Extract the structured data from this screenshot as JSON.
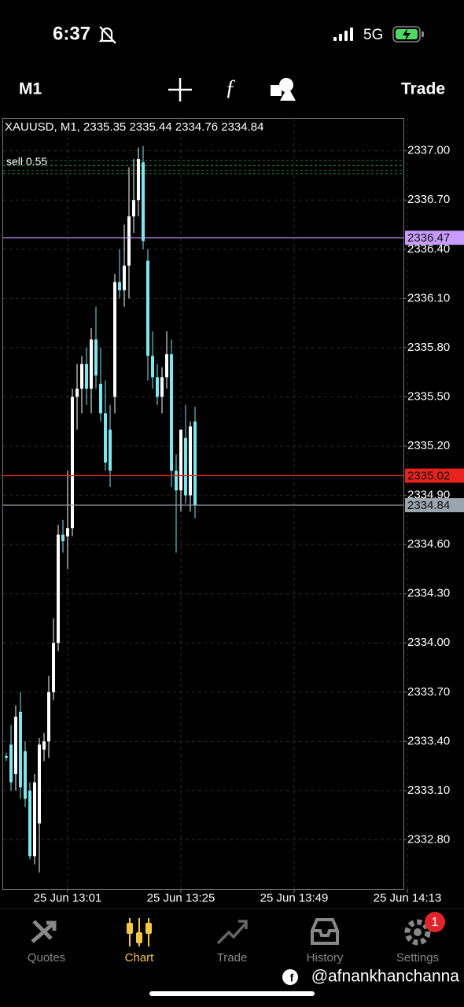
{
  "status_bar": {
    "time": "6:37",
    "network": "5G"
  },
  "toolbar": {
    "timeframe": "M1",
    "trade": "Trade"
  },
  "chart_data": {
    "type": "candlestick",
    "symbol": "XAUUSD, M1,",
    "x": [
      "25 Jun 12:48",
      "25 Jun 12:49",
      "25 Jun 12:50",
      "25 Jun 12:51",
      "25 Jun 12:52",
      "25 Jun 12:53",
      "25 Jun 12:54",
      "25 Jun 12:55",
      "25 Jun 12:56",
      "25 Jun 12:57",
      "25 Jun 12:58",
      "25 Jun 12:59",
      "25 Jun 13:00",
      "25 Jun 13:01",
      "25 Jun 13:02",
      "25 Jun 13:03",
      "25 Jun 13:04",
      "25 Jun 13:05",
      "25 Jun 13:06",
      "25 Jun 13:07",
      "25 Jun 13:08",
      "25 Jun 13:09",
      "25 Jun 13:10",
      "25 Jun 13:11",
      "25 Jun 13:12",
      "25 Jun 13:13",
      "25 Jun 13:14",
      "25 Jun 13:15",
      "25 Jun 13:16",
      "25 Jun 13:17",
      "25 Jun 13:18",
      "25 Jun 13:19",
      "25 Jun 13:20",
      "25 Jun 13:21",
      "25 Jun 13:22",
      "25 Jun 13:23",
      "25 Jun 13:24",
      "25 Jun 13:25",
      "25 Jun 13:26",
      "25 Jun 13:27",
      "25 Jun 13:28"
    ],
    "open": [
      2333.31,
      2333.38,
      2333.2,
      2333.58,
      2333.34,
      2333.1,
      2332.7,
      2332.9,
      2333.35,
      2333.4,
      2333.7,
      2334,
      2334.66,
      2334.65,
      2334.7,
      2335.5,
      2335.55,
      2335.7,
      2335.55,
      2335.85,
      2335.58,
      2335.4,
      2335.3,
      2335.5,
      2336.2,
      2336.15,
      2336.3,
      2336.6,
      2336.7,
      2336.93,
      2336.33,
      2335.75,
      2335.62,
      2335.5,
      2335.62,
      2335.76,
      2335.05,
      2334.93,
      2335.25,
      2334.9,
      2335.35
    ],
    "high": [
      2333.33,
      2333.5,
      2333.62,
      2333.7,
      2333.4,
      2333.15,
      2333.2,
      2333.42,
      2333.45,
      2333.8,
      2334.15,
      2334.72,
      2334.75,
      2335.05,
      2335.55,
      2335.7,
      2335.75,
      2335.8,
      2335.92,
      2336.05,
      2335.8,
      2335.6,
      2335.45,
      2336.25,
      2336.4,
      2336.55,
      2336.9,
      2336.95,
      2337.02,
      2337.03,
      2336.4,
      2335.9,
      2335.7,
      2335.68,
      2335.9,
      2335.85,
      2335.15,
      2335.3,
      2335.45,
      2335.35,
      2335.44
    ],
    "low": [
      2333.28,
      2333.1,
      2333.1,
      2333.05,
      2333,
      2332.68,
      2332.65,
      2332.6,
      2333.28,
      2333.3,
      2333.65,
      2333.95,
      2334.55,
      2334.45,
      2334.65,
      2335.3,
      2335.4,
      2335.45,
      2335.4,
      2335.55,
      2335.35,
      2335.05,
      2334.95,
      2335.4,
      2336.1,
      2336.05,
      2336.1,
      2336.5,
      2336.6,
      2336.4,
      2335.6,
      2335.55,
      2335.45,
      2335.4,
      2335.55,
      2334.95,
      2334.55,
      2334.8,
      2334.85,
      2334.8,
      2334.76
    ],
    "close": [
      2333.3,
      2333.15,
      2333.55,
      2333.12,
      2333.05,
      2332.7,
      2333.15,
      2333.38,
      2333.4,
      2333.7,
      2334,
      2334.66,
      2334.62,
      2334.7,
      2335.5,
      2335.55,
      2335.7,
      2335.55,
      2335.85,
      2335.63,
      2335.4,
      2335.1,
      2335.05,
      2336.2,
      2336.15,
      2336.3,
      2336.6,
      2336.7,
      2336.95,
      2336.45,
      2335.75,
      2335.62,
      2335.5,
      2335.62,
      2335.76,
      2335.05,
      2334.93,
      2335.3,
      2334.9,
      2335.32,
      2334.84
    ],
    "up_color": "#ffffff",
    "down_color": "#7fe6ef",
    "ylim": [
      2332.5,
      2337.2
    ],
    "yticks": [
      {
        "value": 2337.0,
        "label": "2337.00"
      },
      {
        "value": 2336.7,
        "label": "2336.70"
      },
      {
        "value": 2336.4,
        "label": "2336.40"
      },
      {
        "value": 2336.1,
        "label": "2336.10"
      },
      {
        "value": 2335.8,
        "label": "2335.80"
      },
      {
        "value": 2335.5,
        "label": "2335.50"
      },
      {
        "value": 2335.2,
        "label": "2335.20"
      },
      {
        "value": 2334.9,
        "label": "2334.90"
      },
      {
        "value": 2334.6,
        "label": "2334.60"
      },
      {
        "value": 2334.3,
        "label": "2334.30"
      },
      {
        "value": 2334.0,
        "label": "2334.00"
      },
      {
        "value": 2333.7,
        "label": "2333.70"
      },
      {
        "value": 2333.4,
        "label": "2333.40"
      },
      {
        "value": 2333.1,
        "label": "2333.10"
      },
      {
        "value": 2332.8,
        "label": "2332.80"
      }
    ],
    "xticks": [
      "25 Jun 13:01",
      "25 Jun 13:25",
      "25 Jun 13:49",
      "25 Jun 14:13"
    ],
    "grid": true,
    "levels": [
      {
        "value": 2336.47,
        "color": "#c79bff"
      },
      {
        "value": 2335.02,
        "color": "#e8231f"
      },
      {
        "value": 2334.84,
        "color": "#9aa5ae"
      }
    ],
    "orders": {
      "label": "sell 0.55",
      "color": "#1f7a2e",
      "values": [
        2336.94,
        2336.91,
        2336.88,
        2336.86
      ]
    }
  },
  "nav": {
    "items": [
      "Quotes",
      "Chart",
      "Trade",
      "History",
      "Settings"
    ],
    "active": 1,
    "badge": 1
  },
  "watermark": "@afnankhanchanna"
}
